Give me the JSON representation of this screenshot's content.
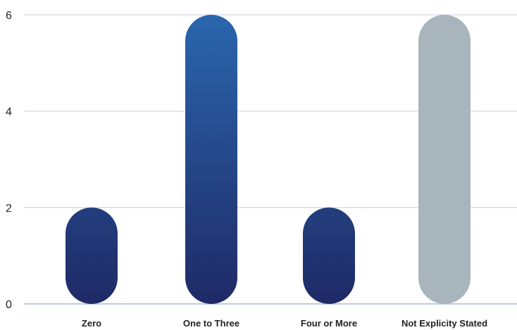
{
  "chart_data": {
    "type": "bar",
    "title": "",
    "xlabel": "",
    "ylabel": "",
    "categories": [
      "Zero",
      "One to Three",
      "Four or More",
      "Not Explicity Stated"
    ],
    "values": [
      2,
      6,
      2,
      6
    ],
    "ylim": [
      0,
      6
    ],
    "yticks": [
      0,
      2,
      4,
      6
    ],
    "grid": true,
    "legend": "none",
    "colors": {
      "gradient_light": "#2a66ad",
      "gradient_dark": "#1f2a66",
      "grey_bar": "#a8b5bd",
      "gridline": "#c8d0e0",
      "axis_line": "#a9bcd6",
      "text": "#222222"
    },
    "bar_style": [
      "gradient",
      "gradient",
      "gradient",
      "grey"
    ]
  }
}
